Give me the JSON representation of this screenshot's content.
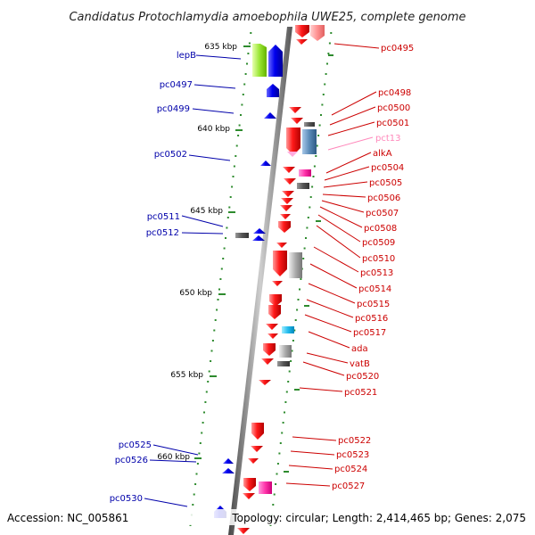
{
  "title": "Candidatus Protochlamydia amoebophila UWE25, complete genome",
  "footer": {
    "accession": "Accession: NC_005861",
    "summary": "Topology: circular; Length: 2,414,465 bp; Genes: 2,075"
  },
  "colors": {
    "forward_label": "#0000aa",
    "reverse_label": "#cc0000",
    "pink_label": "#ff88bb",
    "backbone": "#888888",
    "tick": "#2e8b2e"
  },
  "kbp_ticks": [
    "635 kbp",
    "640 kbp",
    "645 kbp",
    "650 kbp",
    "655 kbp",
    "660 kbp"
  ],
  "left_genes": [
    "lepB",
    "pc0497",
    "pc0499",
    "pc0502",
    "pc0511",
    "pc0512",
    "pc0525",
    "pc0526",
    "pc0530"
  ],
  "right_genes": [
    "pc0495",
    "pc0498",
    "pc0500",
    "pc0501",
    "pct13",
    "alkA",
    "pc0504",
    "pc0505",
    "pc0506",
    "pc0507",
    "pc0508",
    "pc0509",
    "pc0510",
    "pc0513",
    "pc0514",
    "pc0515",
    "pc0516",
    "pc0517",
    "ada",
    "vatB",
    "pc0520",
    "pc0521",
    "pc0522",
    "pc0523",
    "pc0524",
    "pc0527"
  ]
}
